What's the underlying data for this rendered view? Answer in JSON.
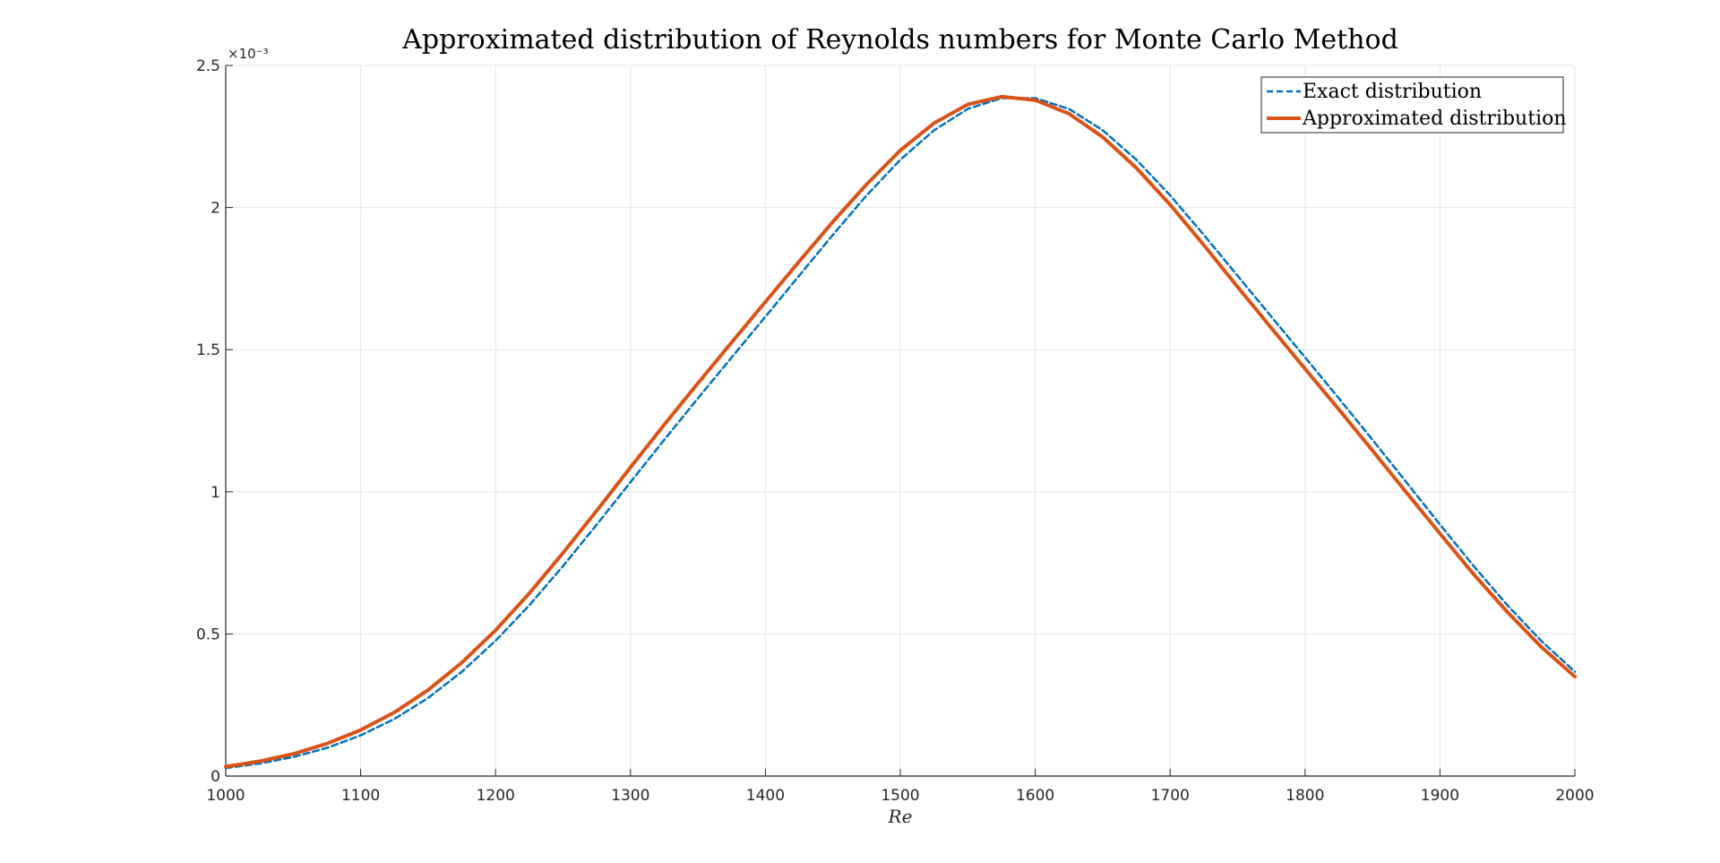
{
  "chart_data": {
    "type": "line",
    "title": "Approximated distribution of Reynolds numbers for Monte Carlo Method",
    "xlabel": "Re",
    "ylabel": "",
    "xlim": [
      1000,
      2000
    ],
    "ylim": [
      0,
      0.0025
    ],
    "x_ticks": [
      "1000",
      "1100",
      "1200",
      "1300",
      "1400",
      "1500",
      "1600",
      "1700",
      "1800",
      "1900",
      "2000"
    ],
    "y_ticks": [
      "0",
      "0.5",
      "1",
      "1.5",
      "2",
      "2.5"
    ],
    "y_exponent_label": "×10⁻³",
    "grid": true,
    "legend_position": "top-right",
    "series": [
      {
        "name": "Exact distribution",
        "style": "dashed",
        "color": "#0072BD",
        "x": [
          1000,
          1025,
          1050,
          1075,
          1100,
          1125,
          1150,
          1175,
          1200,
          1225,
          1250,
          1275,
          1300,
          1325,
          1350,
          1375,
          1400,
          1425,
          1450,
          1475,
          1500,
          1525,
          1550,
          1575,
          1600,
          1625,
          1650,
          1675,
          1700,
          1725,
          1750,
          1775,
          1800,
          1825,
          1850,
          1875,
          1900,
          1925,
          1950,
          1975,
          2000
        ],
        "y": [
          2.8e-05,
          4.4e-05,
          6.7e-05,
          9.9e-05,
          0.000143,
          0.000201,
          0.000275,
          0.000367,
          0.000476,
          0.000601,
          0.000739,
          0.000885,
          0.001034,
          0.001183,
          0.001329,
          0.001473,
          0.001616,
          0.00176,
          0.001904,
          0.002043,
          0.002168,
          0.002272,
          0.002347,
          0.002385,
          0.002385,
          0.002347,
          0.002272,
          0.002168,
          0.002043,
          0.001904,
          0.00176,
          0.001616,
          0.001473,
          0.001329,
          0.001183,
          0.001034,
          0.000885,
          0.000739,
          0.000601,
          0.000476,
          0.000367
        ]
      },
      {
        "name": "Approximated distribution",
        "style": "solid",
        "color": "#D95319",
        "x": [
          1000,
          1025,
          1050,
          1075,
          1100,
          1125,
          1150,
          1175,
          1200,
          1225,
          1250,
          1275,
          1300,
          1325,
          1350,
          1375,
          1400,
          1425,
          1450,
          1475,
          1500,
          1525,
          1550,
          1575,
          1600,
          1625,
          1650,
          1675,
          1700,
          1725,
          1750,
          1775,
          1800,
          1825,
          1850,
          1875,
          1900,
          1925,
          1950,
          1975,
          2000
        ],
        "y": [
          3.3e-05,
          5.2e-05,
          7.8e-05,
          0.000114,
          0.000162,
          0.000224,
          0.000303,
          0.000399,
          0.000513,
          0.000643,
          0.000785,
          0.000934,
          0.001086,
          0.001236,
          0.001382,
          0.001526,
          0.001668,
          0.00181,
          0.00195,
          0.002082,
          0.002201,
          0.002297,
          0.002363,
          0.00239,
          0.002378,
          0.00233,
          0.002248,
          0.002139,
          0.00201,
          0.001868,
          0.001721,
          0.001576,
          0.001433,
          0.00129,
          0.001145,
          0.000998,
          0.000853,
          0.00071,
          0.000577,
          0.000455,
          0.00035
        ]
      }
    ]
  }
}
